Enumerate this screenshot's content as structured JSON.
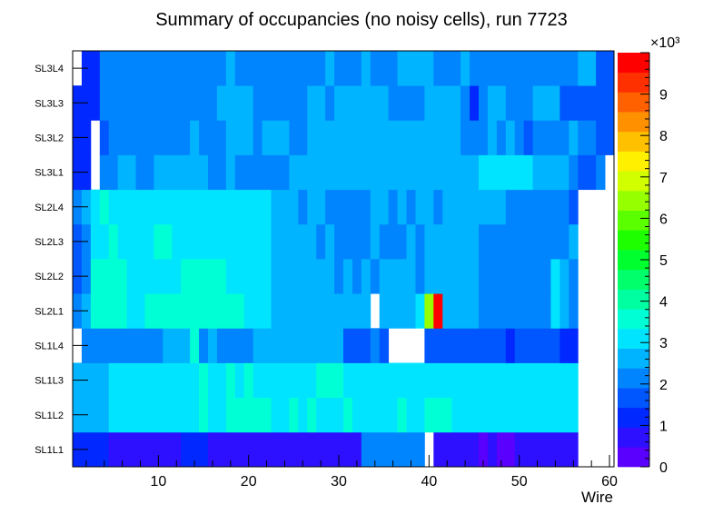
{
  "chart_data": {
    "type": "heatmap",
    "title": "Summary of occupancies (no noisy cells), run 7723",
    "xlabel": "Wire",
    "ylabel": "",
    "x_ticks": [
      "10",
      "20",
      "30",
      "40",
      "50",
      "60"
    ],
    "xlim": [
      0.5,
      60.5
    ],
    "y_categories": [
      "SL1L1",
      "SL1L2",
      "SL1L3",
      "SL1L4",
      "SL2L1",
      "SL2L2",
      "SL2L3",
      "SL2L4",
      "SL3L1",
      "SL3L2",
      "SL3L3",
      "SL3L4"
    ],
    "z_range": [
      0,
      10000
    ],
    "z_ticks": [
      "0",
      "1",
      "2",
      "3",
      "4",
      "5",
      "6",
      "7",
      "8",
      "9"
    ],
    "z_multiplier": "×10³",
    "palette": [
      "#5a00ff",
      "#2d10ff",
      "#0028ff",
      "#0056ff",
      "#0085ff",
      "#00b4ff",
      "#00e4ff",
      "#00ffd5",
      "#00ffa0",
      "#00ff6a",
      "#00ff2e",
      "#1eff00",
      "#5aff00",
      "#96ff00",
      "#d2ff00",
      "#fff000",
      "#ffc000",
      "#ff9000",
      "#ff6000",
      "#ff3000",
      "#ff0000"
    ],
    "rows": [
      {
        "layer": "SL1L1",
        "segments": [
          [
            1,
            4,
            1300
          ],
          [
            5,
            10,
            600
          ],
          [
            11,
            11,
            900
          ],
          [
            12,
            12,
            600
          ],
          [
            13,
            15,
            1300
          ],
          [
            16,
            32,
            600
          ],
          [
            33,
            39,
            2200
          ],
          [
            40,
            40,
            null
          ],
          [
            41,
            45,
            600
          ],
          [
            46,
            46,
            300
          ],
          [
            47,
            47,
            600
          ],
          [
            48,
            49,
            300
          ],
          [
            50,
            56,
            600
          ]
        ]
      },
      {
        "layer": "SL1L2",
        "segments": [
          [
            1,
            4,
            2700
          ],
          [
            5,
            14,
            3300
          ],
          [
            15,
            15,
            3700
          ],
          [
            16,
            17,
            3300
          ],
          [
            18,
            22,
            3700
          ],
          [
            23,
            24,
            3300
          ],
          [
            25,
            25,
            3700
          ],
          [
            26,
            26,
            3300
          ],
          [
            27,
            27,
            3700
          ],
          [
            28,
            30,
            3300
          ],
          [
            31,
            31,
            3700
          ],
          [
            32,
            36,
            3300
          ],
          [
            37,
            37,
            3700
          ],
          [
            38,
            39,
            3300
          ],
          [
            40,
            40,
            3700
          ],
          [
            41,
            42,
            3700
          ],
          [
            43,
            56,
            3300
          ]
        ]
      },
      {
        "layer": "SL1L3",
        "segments": [
          [
            1,
            4,
            2700
          ],
          [
            5,
            14,
            3300
          ],
          [
            15,
            15,
            3700
          ],
          [
            16,
            17,
            3300
          ],
          [
            18,
            18,
            3700
          ],
          [
            19,
            19,
            3300
          ],
          [
            20,
            20,
            3700
          ],
          [
            21,
            27,
            3300
          ],
          [
            28,
            30,
            3700
          ],
          [
            31,
            56,
            3300
          ]
        ]
      },
      {
        "layer": "SL1L4",
        "segments": [
          [
            1,
            1,
            null
          ],
          [
            2,
            10,
            2200
          ],
          [
            11,
            13,
            2700
          ],
          [
            14,
            14,
            3700
          ],
          [
            15,
            15,
            2200
          ],
          [
            16,
            16,
            2700
          ],
          [
            17,
            20,
            2200
          ],
          [
            21,
            30,
            2700
          ],
          [
            31,
            33,
            1600
          ],
          [
            34,
            34,
            2200
          ],
          [
            35,
            35,
            1600
          ],
          [
            36,
            39,
            null
          ],
          [
            40,
            48,
            1600
          ],
          [
            49,
            49,
            1300
          ],
          [
            50,
            54,
            1600
          ],
          [
            55,
            55,
            1000
          ],
          [
            56,
            56,
            1300
          ],
          [
            57,
            60,
            null
          ]
        ]
      },
      {
        "layer": "SL2L1",
        "segments": [
          [
            1,
            1,
            2200
          ],
          [
            2,
            2,
            2700
          ],
          [
            3,
            6,
            3700
          ],
          [
            7,
            8,
            3300
          ],
          [
            9,
            19,
            3700
          ],
          [
            20,
            22,
            3300
          ],
          [
            23,
            33,
            2700
          ],
          [
            34,
            34,
            null
          ],
          [
            35,
            38,
            2700
          ],
          [
            39,
            39,
            3300
          ],
          [
            40,
            40,
            6400
          ],
          [
            41,
            41,
            9800
          ],
          [
            42,
            45,
            2700
          ],
          [
            46,
            53,
            2200
          ],
          [
            54,
            54,
            3300
          ],
          [
            55,
            55,
            2700
          ],
          [
            56,
            56,
            2200
          ],
          [
            57,
            60,
            null
          ]
        ]
      },
      {
        "layer": "SL2L2",
        "segments": [
          [
            1,
            1,
            1600
          ],
          [
            2,
            2,
            2200
          ],
          [
            3,
            6,
            3700
          ],
          [
            7,
            12,
            3300
          ],
          [
            13,
            17,
            3700
          ],
          [
            18,
            19,
            3300
          ],
          [
            20,
            22,
            3300
          ],
          [
            23,
            29,
            2700
          ],
          [
            30,
            30,
            2200
          ],
          [
            31,
            31,
            2700
          ],
          [
            32,
            32,
            2200
          ],
          [
            33,
            33,
            2700
          ],
          [
            34,
            34,
            2200
          ],
          [
            35,
            38,
            2700
          ],
          [
            39,
            39,
            2200
          ],
          [
            40,
            45,
            2700
          ],
          [
            46,
            53,
            2200
          ],
          [
            54,
            54,
            3300
          ],
          [
            55,
            55,
            2700
          ],
          [
            56,
            56,
            2200
          ],
          [
            57,
            60,
            null
          ]
        ]
      },
      {
        "layer": "SL2L3",
        "segments": [
          [
            1,
            1,
            1600
          ],
          [
            2,
            2,
            2200
          ],
          [
            3,
            4,
            3300
          ],
          [
            5,
            5,
            3700
          ],
          [
            6,
            9,
            3300
          ],
          [
            10,
            11,
            3700
          ],
          [
            12,
            22,
            3300
          ],
          [
            23,
            27,
            2700
          ],
          [
            28,
            28,
            2200
          ],
          [
            29,
            29,
            2700
          ],
          [
            30,
            30,
            2200
          ],
          [
            31,
            33,
            2200
          ],
          [
            34,
            34,
            2700
          ],
          [
            35,
            37,
            2200
          ],
          [
            38,
            38,
            2700
          ],
          [
            39,
            39,
            2200
          ],
          [
            40,
            45,
            2700
          ],
          [
            46,
            48,
            2200
          ],
          [
            49,
            55,
            2200
          ],
          [
            56,
            56,
            2700
          ],
          [
            57,
            60,
            null
          ]
        ]
      },
      {
        "layer": "SL2L4",
        "segments": [
          [
            1,
            1,
            2200
          ],
          [
            2,
            2,
            2700
          ],
          [
            3,
            3,
            3300
          ],
          [
            4,
            4,
            3700
          ],
          [
            5,
            22,
            3300
          ],
          [
            23,
            25,
            2700
          ],
          [
            26,
            26,
            2200
          ],
          [
            27,
            28,
            2700
          ],
          [
            29,
            33,
            2200
          ],
          [
            34,
            35,
            2700
          ],
          [
            36,
            36,
            2200
          ],
          [
            37,
            37,
            2700
          ],
          [
            38,
            38,
            2200
          ],
          [
            39,
            40,
            2700
          ],
          [
            41,
            41,
            2200
          ],
          [
            42,
            48,
            2700
          ],
          [
            49,
            55,
            2200
          ],
          [
            56,
            56,
            1600
          ],
          [
            57,
            60,
            null
          ]
        ]
      },
      {
        "layer": "SL3L1",
        "segments": [
          [
            1,
            2,
            1300
          ],
          [
            3,
            3,
            null
          ],
          [
            4,
            5,
            2200
          ],
          [
            6,
            7,
            2700
          ],
          [
            8,
            9,
            2200
          ],
          [
            10,
            15,
            2700
          ],
          [
            16,
            17,
            2200
          ],
          [
            18,
            18,
            2700
          ],
          [
            19,
            24,
            2200
          ],
          [
            25,
            45,
            2700
          ],
          [
            46,
            51,
            3300
          ],
          [
            52,
            55,
            2700
          ],
          [
            56,
            56,
            2200
          ],
          [
            57,
            58,
            1600
          ],
          [
            59,
            59,
            2200
          ],
          [
            60,
            60,
            null
          ]
        ]
      },
      {
        "layer": "SL3L2",
        "segments": [
          [
            1,
            2,
            1300
          ],
          [
            3,
            3,
            null
          ],
          [
            4,
            4,
            1600
          ],
          [
            5,
            13,
            2200
          ],
          [
            14,
            14,
            2700
          ],
          [
            15,
            17,
            2200
          ],
          [
            18,
            20,
            2700
          ],
          [
            21,
            21,
            2200
          ],
          [
            22,
            24,
            2700
          ],
          [
            25,
            26,
            2200
          ],
          [
            27,
            32,
            2700
          ],
          [
            33,
            36,
            2700
          ],
          [
            37,
            43,
            2700
          ],
          [
            44,
            46,
            2200
          ],
          [
            47,
            47,
            2700
          ],
          [
            48,
            48,
            2200
          ],
          [
            49,
            49,
            2700
          ],
          [
            50,
            50,
            2200
          ],
          [
            51,
            51,
            1600
          ],
          [
            52,
            55,
            2200
          ],
          [
            56,
            56,
            2700
          ],
          [
            57,
            58,
            2200
          ],
          [
            59,
            60,
            1600
          ]
        ]
      },
      {
        "layer": "SL3L3",
        "segments": [
          [
            1,
            3,
            1000
          ],
          [
            4,
            16,
            2200
          ],
          [
            17,
            20,
            2700
          ],
          [
            21,
            26,
            2200
          ],
          [
            27,
            28,
            2700
          ],
          [
            29,
            29,
            2200
          ],
          [
            30,
            35,
            2700
          ],
          [
            36,
            39,
            2200
          ],
          [
            40,
            43,
            2700
          ],
          [
            44,
            44,
            2200
          ],
          [
            45,
            45,
            1300
          ],
          [
            46,
            46,
            2200
          ],
          [
            47,
            48,
            2700
          ],
          [
            49,
            51,
            2200
          ],
          [
            52,
            54,
            2700
          ],
          [
            55,
            60,
            1600
          ]
        ]
      },
      {
        "layer": "SL3L4",
        "segments": [
          [
            1,
            1,
            null
          ],
          [
            2,
            3,
            1300
          ],
          [
            4,
            17,
            2200
          ],
          [
            18,
            18,
            2700
          ],
          [
            19,
            28,
            2200
          ],
          [
            29,
            29,
            2700
          ],
          [
            30,
            32,
            2200
          ],
          [
            33,
            33,
            2700
          ],
          [
            34,
            36,
            2200
          ],
          [
            37,
            40,
            2700
          ],
          [
            41,
            43,
            2200
          ],
          [
            44,
            44,
            2700
          ],
          [
            45,
            56,
            2200
          ],
          [
            57,
            58,
            2700
          ],
          [
            59,
            60,
            1600
          ]
        ]
      }
    ]
  }
}
